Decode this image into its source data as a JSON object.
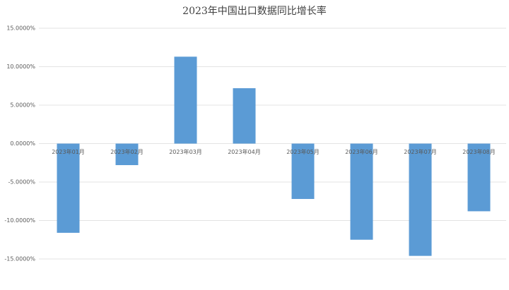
{
  "chart_data": {
    "type": "bar",
    "title": "2023年中国出口数据同比增长率",
    "categories": [
      "2023年01月",
      "2023年02月",
      "2023年03月",
      "2023年04月",
      "2023年05月",
      "2023年06月",
      "2023年07月",
      "2023年08月"
    ],
    "values": [
      -11.6,
      -2.8,
      11.3,
      7.2,
      -7.2,
      -12.5,
      -14.6,
      -8.8
    ],
    "color": "#5b9bd5",
    "ylim": [
      -15,
      15
    ],
    "yticks": [
      {
        "value": 15,
        "label": "15.0000%"
      },
      {
        "value": 10,
        "label": "10.0000%"
      },
      {
        "value": 5,
        "label": "5.0000%"
      },
      {
        "value": 0,
        "label": "0.0000%"
      },
      {
        "value": -5,
        "label": "-5.0000%"
      },
      {
        "value": -10,
        "label": "-10.0000%"
      },
      {
        "value": -15,
        "label": "-15.0000%"
      }
    ],
    "grid": true
  }
}
